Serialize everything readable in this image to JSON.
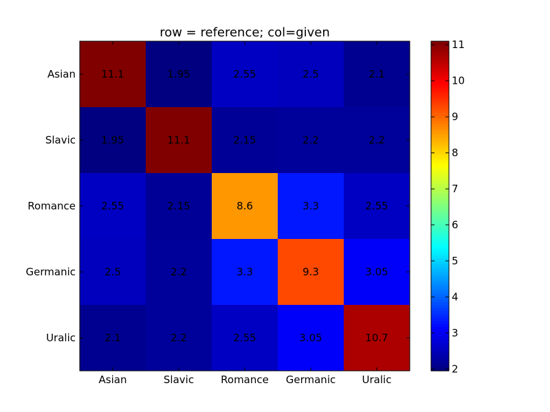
{
  "chart_data": {
    "type": "heatmap",
    "title": "row = reference; col=given",
    "xlabel": "",
    "ylabel": "",
    "x_categories": [
      "Asian",
      "Slavic",
      "Romance",
      "Germanic",
      "Uralic"
    ],
    "y_categories": [
      "Asian",
      "Slavic",
      "Romance",
      "Germanic",
      "Uralic"
    ],
    "values": [
      [
        11.1,
        1.95,
        2.55,
        2.5,
        2.1
      ],
      [
        1.95,
        11.1,
        2.15,
        2.2,
        2.2
      ],
      [
        2.55,
        2.15,
        8.6,
        3.3,
        2.55
      ],
      [
        2.5,
        2.2,
        3.3,
        9.3,
        3.05
      ],
      [
        2.1,
        2.2,
        2.55,
        3.05,
        10.7
      ]
    ],
    "cell_labels": [
      [
        "11.1",
        "1.95",
        "2.55",
        "2.5",
        "2.1"
      ],
      [
        "1.95",
        "11.1",
        "2.15",
        "2.2",
        "2.2"
      ],
      [
        "2.55",
        "2.15",
        "8.6",
        "3.3",
        "2.55"
      ],
      [
        "2.5",
        "2.2",
        "3.3",
        "9.3",
        "3.05"
      ],
      [
        "2.1",
        "2.2",
        "2.55",
        "3.05",
        "10.7"
      ]
    ],
    "colormap": "jet",
    "colorbar": {
      "range": [
        1.95,
        11.1
      ],
      "ticks": [
        2,
        3,
        4,
        5,
        6,
        7,
        8,
        9,
        10,
        11
      ],
      "tick_labels": [
        "2",
        "3",
        "4",
        "5",
        "6",
        "7",
        "8",
        "9",
        "10",
        "11"
      ]
    },
    "grid": false
  }
}
